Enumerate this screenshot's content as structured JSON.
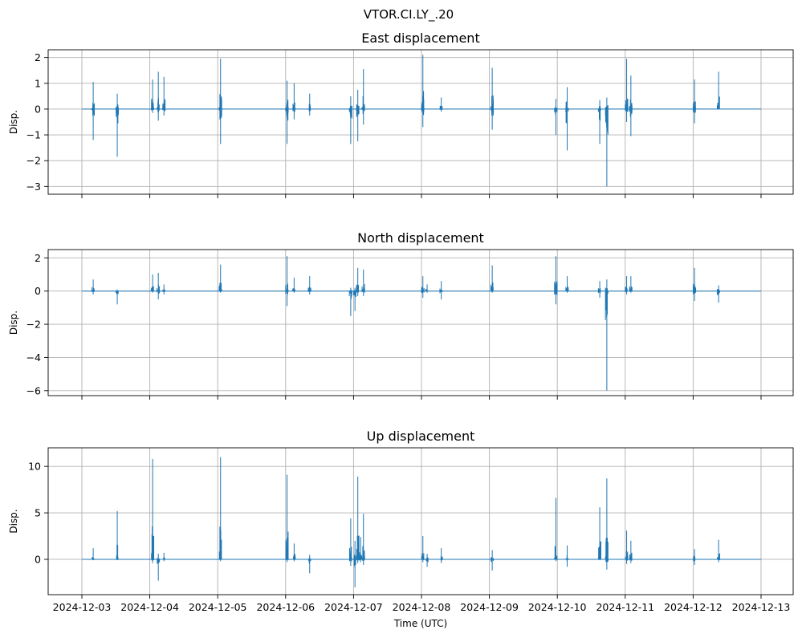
{
  "figure": {
    "suptitle": "VTOR.CI.LY_.20",
    "xlabel": "Time (UTC)"
  },
  "colors": {
    "series": "#1f77b4",
    "grid": "#b0b0b0",
    "background": "#ffffff"
  },
  "chart_data": [
    {
      "type": "line",
      "title": "East displacement",
      "ylabel": "Disp.",
      "series_name": "",
      "xlim": [
        "2024-12-03",
        "2024-12-13"
      ],
      "ylim": [
        -3.3,
        2.3
      ],
      "yticks": [
        2,
        1,
        0,
        -1,
        -2,
        -3
      ],
      "xticks": [
        "2024-12-03",
        "2024-12-04",
        "2024-12-05",
        "2024-12-06",
        "2024-12-07",
        "2024-12-08",
        "2024-12-09",
        "2024-12-10",
        "2024-12-11",
        "2024-12-12",
        "2024-12-13"
      ],
      "show_xtick_labels": false,
      "grid": true,
      "spikes": [
        {
          "t": "2024-12-03T04:00",
          "max": 1.05,
          "min": -1.2
        },
        {
          "t": "2024-12-03T12:30",
          "max": 0.6,
          "min": -1.85
        },
        {
          "t": "2024-12-04T01:00",
          "max": 1.15,
          "min": -0.15
        },
        {
          "t": "2024-12-04T03:00",
          "max": 1.45,
          "min": -0.45
        },
        {
          "t": "2024-12-04T05:00",
          "max": 1.25,
          "min": -0.25
        },
        {
          "t": "2024-12-05T01:00",
          "max": 1.95,
          "min": -1.35
        },
        {
          "t": "2024-12-06T00:30",
          "max": 1.1,
          "min": -1.35
        },
        {
          "t": "2024-12-06T03:00",
          "max": 1.0,
          "min": -0.4
        },
        {
          "t": "2024-12-06T08:30",
          "max": 0.6,
          "min": -0.25
        },
        {
          "t": "2024-12-06T23:00",
          "max": 0.5,
          "min": -1.35
        },
        {
          "t": "2024-12-07T01:30",
          "max": 0.75,
          "min": -1.25
        },
        {
          "t": "2024-12-07T03:30",
          "max": 1.55,
          "min": -0.6
        },
        {
          "t": "2024-12-08T00:30",
          "max": 2.1,
          "min": -0.7
        },
        {
          "t": "2024-12-08T07:00",
          "max": 0.45,
          "min": -0.1
        },
        {
          "t": "2024-12-09T01:00",
          "max": 1.6,
          "min": -0.8
        },
        {
          "t": "2024-12-09T23:30",
          "max": 0.4,
          "min": -1.0
        },
        {
          "t": "2024-12-10T03:30",
          "max": 0.85,
          "min": -1.6
        },
        {
          "t": "2024-12-10T15:00",
          "max": 0.35,
          "min": -1.35
        },
        {
          "t": "2024-12-10T17:30",
          "max": 0.45,
          "min": -3.0
        },
        {
          "t": "2024-12-11T00:30",
          "max": 1.95,
          "min": -0.5
        },
        {
          "t": "2024-12-11T02:00",
          "max": 1.3,
          "min": -1.05
        },
        {
          "t": "2024-12-12T00:30",
          "max": 1.15,
          "min": -0.55
        },
        {
          "t": "2024-12-12T09:00",
          "max": 1.45,
          "min": 0.0
        }
      ]
    },
    {
      "type": "line",
      "title": "North displacement",
      "ylabel": "Disp.",
      "series_name": "",
      "xlim": [
        "2024-12-03",
        "2024-12-13"
      ],
      "ylim": [
        -6.3,
        2.5
      ],
      "yticks": [
        2,
        0,
        -2,
        -4,
        -6
      ],
      "xticks": [
        "2024-12-03",
        "2024-12-04",
        "2024-12-05",
        "2024-12-06",
        "2024-12-07",
        "2024-12-08",
        "2024-12-09",
        "2024-12-10",
        "2024-12-11",
        "2024-12-12",
        "2024-12-13"
      ],
      "show_xtick_labels": false,
      "grid": true,
      "spikes": [
        {
          "t": "2024-12-03T04:00",
          "max": 0.7,
          "min": -0.2
        },
        {
          "t": "2024-12-03T12:30",
          "max": 0.1,
          "min": -0.8
        },
        {
          "t": "2024-12-04T01:00",
          "max": 1.0,
          "min": -0.1
        },
        {
          "t": "2024-12-04T03:00",
          "max": 1.1,
          "min": -0.5
        },
        {
          "t": "2024-12-04T05:00",
          "max": 0.4,
          "min": -0.2
        },
        {
          "t": "2024-12-05T01:00",
          "max": 1.6,
          "min": -0.1
        },
        {
          "t": "2024-12-06T00:30",
          "max": 2.1,
          "min": -0.9
        },
        {
          "t": "2024-12-06T03:00",
          "max": 0.8,
          "min": -0.1
        },
        {
          "t": "2024-12-06T08:30",
          "max": 0.9,
          "min": -0.2
        },
        {
          "t": "2024-12-06T23:00",
          "max": 0.2,
          "min": -1.5
        },
        {
          "t": "2024-12-07T00:30",
          "max": 0.2,
          "min": -1.2
        },
        {
          "t": "2024-12-07T01:30",
          "max": 1.4,
          "min": -0.3
        },
        {
          "t": "2024-12-07T03:30",
          "max": 1.3,
          "min": -0.3
        },
        {
          "t": "2024-12-08T00:30",
          "max": 0.9,
          "min": -0.4
        },
        {
          "t": "2024-12-08T02:00",
          "max": 0.4,
          "min": -0.1
        },
        {
          "t": "2024-12-08T07:00",
          "max": 0.6,
          "min": -0.5
        },
        {
          "t": "2024-12-09T01:00",
          "max": 1.55,
          "min": -0.1
        },
        {
          "t": "2024-12-09T23:30",
          "max": 2.1,
          "min": -0.8
        },
        {
          "t": "2024-12-10T03:30",
          "max": 0.9,
          "min": -0.1
        },
        {
          "t": "2024-12-10T15:00",
          "max": 0.6,
          "min": -0.4
        },
        {
          "t": "2024-12-10T17:30",
          "max": 0.7,
          "min": -6.0
        },
        {
          "t": "2024-12-11T00:30",
          "max": 0.9,
          "min": -0.2
        },
        {
          "t": "2024-12-11T02:00",
          "max": 0.9,
          "min": -0.1
        },
        {
          "t": "2024-12-12T00:30",
          "max": 1.4,
          "min": -0.6
        },
        {
          "t": "2024-12-12T09:00",
          "max": 0.35,
          "min": -0.7
        }
      ]
    },
    {
      "type": "line",
      "title": "Up displacement",
      "ylabel": "Disp.",
      "series_name": "",
      "xlim": [
        "2024-12-03",
        "2024-12-13"
      ],
      "ylim": [
        -3.8,
        12.0
      ],
      "yticks": [
        10,
        5,
        0
      ],
      "xticks": [
        "2024-12-03",
        "2024-12-04",
        "2024-12-05",
        "2024-12-06",
        "2024-12-07",
        "2024-12-08",
        "2024-12-09",
        "2024-12-10",
        "2024-12-11",
        "2024-12-12",
        "2024-12-13"
      ],
      "show_xtick_labels": true,
      "grid": true,
      "spikes": [
        {
          "t": "2024-12-03T04:00",
          "max": 1.2,
          "min": -0.1
        },
        {
          "t": "2024-12-03T12:30",
          "max": 5.2,
          "min": -0.1
        },
        {
          "t": "2024-12-04T01:00",
          "max": 10.8,
          "min": -0.4
        },
        {
          "t": "2024-12-04T03:00",
          "max": 0.6,
          "min": -2.3
        },
        {
          "t": "2024-12-04T05:00",
          "max": 0.7,
          "min": -0.2
        },
        {
          "t": "2024-12-05T01:00",
          "max": 11.0,
          "min": -0.2
        },
        {
          "t": "2024-12-06T00:30",
          "max": 9.1,
          "min": -0.3
        },
        {
          "t": "2024-12-06T03:00",
          "max": 1.7,
          "min": -0.2
        },
        {
          "t": "2024-12-06T08:30",
          "max": 0.5,
          "min": -1.5
        },
        {
          "t": "2024-12-06T23:00",
          "max": 4.4,
          "min": -0.7
        },
        {
          "t": "2024-12-07T00:30",
          "max": 2.0,
          "min": -3.0
        },
        {
          "t": "2024-12-07T01:30",
          "max": 8.9,
          "min": -0.4
        },
        {
          "t": "2024-12-07T02:30",
          "max": 2.4,
          "min": -0.3
        },
        {
          "t": "2024-12-07T03:30",
          "max": 4.9,
          "min": -0.6
        },
        {
          "t": "2024-12-08T00:30",
          "max": 2.5,
          "min": -0.3
        },
        {
          "t": "2024-12-08T02:00",
          "max": 0.6,
          "min": -0.8
        },
        {
          "t": "2024-12-08T07:00",
          "max": 1.2,
          "min": -0.4
        },
        {
          "t": "2024-12-09T01:00",
          "max": 1.0,
          "min": -1.2
        },
        {
          "t": "2024-12-09T23:30",
          "max": 6.6,
          "min": -0.2
        },
        {
          "t": "2024-12-10T03:30",
          "max": 1.5,
          "min": -0.8
        },
        {
          "t": "2024-12-10T15:00",
          "max": 5.6,
          "min": -0.1
        },
        {
          "t": "2024-12-10T17:30",
          "max": 8.7,
          "min": -1.1
        },
        {
          "t": "2024-12-11T00:30",
          "max": 3.1,
          "min": -0.5
        },
        {
          "t": "2024-12-11T02:00",
          "max": 2.0,
          "min": -0.4
        },
        {
          "t": "2024-12-12T00:30",
          "max": 1.1,
          "min": -0.6
        },
        {
          "t": "2024-12-12T09:00",
          "max": 2.1,
          "min": -0.3
        }
      ]
    }
  ]
}
